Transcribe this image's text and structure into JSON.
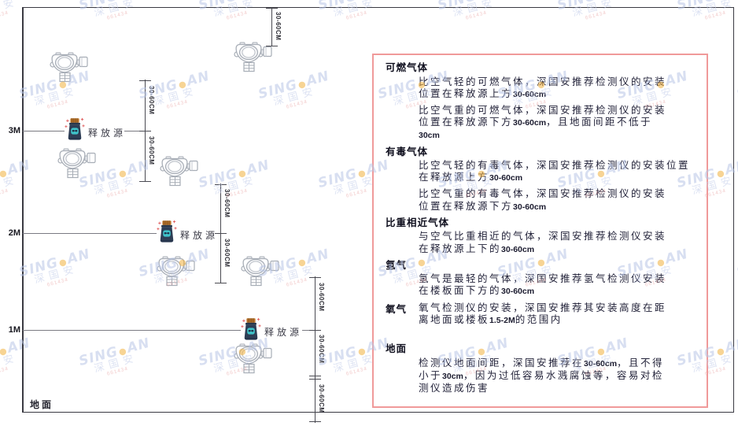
{
  "watermark": {
    "brand_left": "SING",
    "dot": "●",
    "brand_right": "AN",
    "cjk": "深国安",
    "code": "661434"
  },
  "diagram": {
    "axis_labels": [
      "3M",
      "2M",
      "1M"
    ],
    "ground_label": "地面",
    "release_source_label": "释放源",
    "dim_label": "30-60CM"
  },
  "panel": {
    "sections": [
      {
        "heading": "可燃气体",
        "paragraphs": [
          [
            [
              {
                "t": "比空气轻的可燃气体，深国安推荐检测仪的安装"
              }
            ],
            [
              {
                "t": "位置在释放源上方"
              },
              {
                "t": "30-60cm",
                "b": true
              }
            ]
          ],
          [
            [
              {
                "t": "比空气重的可燃气体，深国安推荐检测仪的安装"
              }
            ],
            [
              {
                "t": "位置在释放源下方"
              },
              {
                "t": "30-60cm",
                "b": true
              },
              {
                "t": "，且地面间距不低于"
              }
            ],
            [
              {
                "t": "30cm",
                "b": true
              }
            ]
          ]
        ]
      },
      {
        "heading": "有毒气体",
        "paragraphs": [
          [
            [
              {
                "t": "比空气轻的有毒气体，深国安推荐检测仪的安装位置"
              }
            ],
            [
              {
                "t": "在释放源上方"
              },
              {
                "t": "30-60cm",
                "b": true
              }
            ]
          ],
          [
            [
              {
                "t": "比空气重的有毒气体，深国安推荐检测仪的安装"
              }
            ],
            [
              {
                "t": "位置在释放源下方"
              },
              {
                "t": "30-60cm",
                "b": true
              }
            ]
          ]
        ]
      },
      {
        "heading": "比重相近气体",
        "paragraphs": [
          [
            [
              {
                "t": "与空气比重相近的气体，深国安推荐检测仪安装"
              }
            ],
            [
              {
                "t": "在释放源上下的"
              },
              {
                "t": "30-60cm",
                "b": true
              }
            ]
          ]
        ]
      },
      {
        "heading": "氢气",
        "paragraphs": [
          [
            [
              {
                "t": "氢气是最轻的气体，深国安推荐氢气检测仪安装"
              }
            ],
            [
              {
                "t": "在楼板面下方的"
              },
              {
                "t": "30-60cm",
                "b": true
              }
            ]
          ]
        ]
      },
      {
        "heading": "氧气",
        "paragraphs": [
          [
            [
              {
                "t": "氧气检测仪的安装，深国安推荐其安装高度在距"
              }
            ],
            [
              {
                "t": "离地面或楼板"
              },
              {
                "t": "1.5-2M",
                "b": true
              },
              {
                "t": "的范围内"
              }
            ]
          ]
        ]
      },
      {
        "heading": "地面",
        "paragraphs": [
          [
            [
              {
                "t": "检测仪地面间距，深国安推荐在"
              },
              {
                "t": "30-60cm",
                "b": true
              },
              {
                "t": "，且不得"
              }
            ],
            [
              {
                "t": "小于"
              },
              {
                "t": "30cm",
                "b": true
              },
              {
                "t": "，因为过低容易水溅腐蚀等，容易对检"
              }
            ],
            [
              {
                "t": "测仪造成伤害"
              }
            ]
          ]
        ]
      }
    ]
  }
}
